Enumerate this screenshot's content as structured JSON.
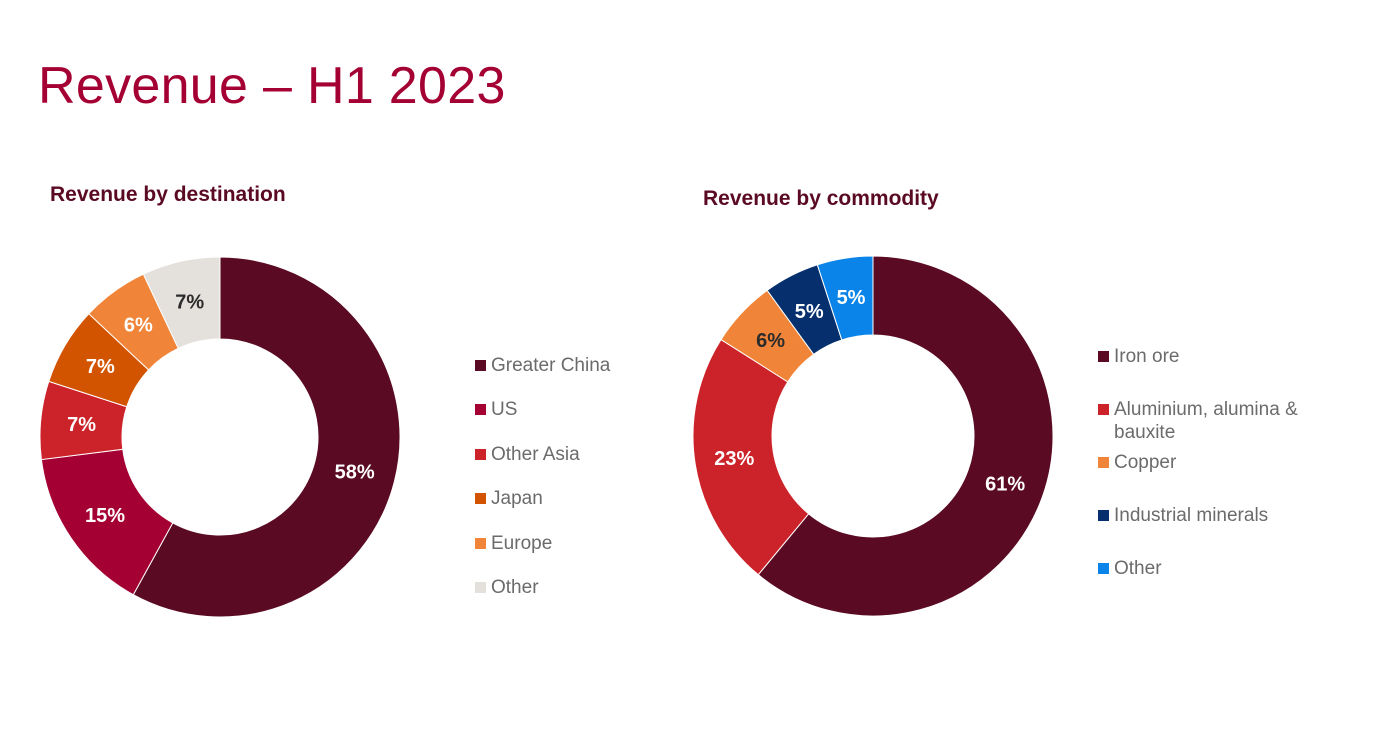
{
  "page": {
    "title": "Revenue – H1 2023"
  },
  "chart_data": [
    {
      "type": "pie",
      "variant": "donut",
      "title": "Revenue by destination",
      "unit": "%",
      "legend_position": "right",
      "slices": [
        {
          "label": "Greater China",
          "value": 58,
          "display": "58%",
          "color": "#5a0a22"
        },
        {
          "label": "US",
          "value": 15,
          "display": "15%",
          "color": "#a50034"
        },
        {
          "label": "Other Asia",
          "value": 7,
          "display": "7%",
          "color": "#cc2229"
        },
        {
          "label": "Japan",
          "value": 7,
          "display": "7%",
          "color": "#d35400"
        },
        {
          "label": "Europe",
          "value": 6,
          "display": "6%",
          "color": "#f08539"
        },
        {
          "label": "Other",
          "value": 7,
          "display": "7%",
          "color": "#e4e0dc"
        }
      ]
    },
    {
      "type": "pie",
      "variant": "donut",
      "title": "Revenue by commodity",
      "unit": "%",
      "legend_position": "right",
      "slices": [
        {
          "label": "Iron ore",
          "value": 61,
          "display": "61%",
          "color": "#5a0a22"
        },
        {
          "label": "Aluminium, alumina & bauxite",
          "value": 23,
          "display": "23%",
          "color": "#cc2229"
        },
        {
          "label": "Copper",
          "value": 6,
          "display": "6%",
          "color": "#f08539"
        },
        {
          "label": "Industrial minerals",
          "value": 5,
          "display": "5%",
          "color": "#05306d"
        },
        {
          "label": "Other",
          "value": 5,
          "display": "5%",
          "color": "#0a84e8"
        }
      ]
    }
  ]
}
